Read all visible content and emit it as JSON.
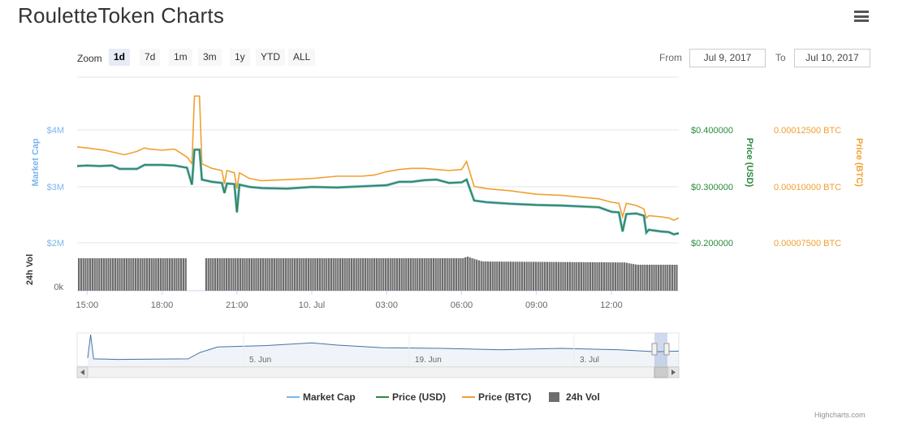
{
  "page": {
    "title": "RouletteToken Charts",
    "menu_icon": "hamburger-menu-icon"
  },
  "toolbar": {
    "zoom_label": "Zoom",
    "zoom_buttons": [
      "1d",
      "7d",
      "1m",
      "3m",
      "1y",
      "YTD",
      "ALL"
    ],
    "active_zoom": "1d",
    "from_label": "From",
    "from_value": "Jul 9, 2017",
    "to_label": "To",
    "to_value": "Jul 10, 2017"
  },
  "credits": "Highcharts.com",
  "colors": {
    "market_cap": "#7cb5ec",
    "price_usd": "#2a8a3c",
    "price_btc": "#f0a030",
    "volume": "#6e6e6e",
    "navigator_line": "#4572a7"
  },
  "chart_data": {
    "type": "line",
    "x_labels": [
      "15:00",
      "18:00",
      "21:00",
      "10. Jul",
      "03:00",
      "06:00",
      "09:00",
      "12:00"
    ],
    "x_range_hours": [
      14.6,
      38.7
    ],
    "axes": {
      "market_cap": {
        "title": "Market Cap",
        "ticks": [
          "$2M",
          "$3M",
          "$4M"
        ],
        "tick_values": [
          2,
          3,
          4
        ],
        "range": [
          2,
          4
        ]
      },
      "price_usd": {
        "title": "Price (USD)",
        "ticks": [
          "$0.200000",
          "$0.300000",
          "$0.400000"
        ],
        "tick_values": [
          0.2,
          0.3,
          0.4
        ],
        "range": [
          0.2,
          0.4
        ]
      },
      "price_btc": {
        "title": "Price (BTC)",
        "ticks": [
          "0.00007500 BTC",
          "0.00010000 BTC",
          "0.00012500 BTC"
        ],
        "tick_values": [
          7.5e-05,
          0.0001,
          0.000125
        ],
        "range": [
          7.5e-05,
          0.000125
        ]
      },
      "volume": {
        "title": "24h Vol",
        "ticks": [
          "0k"
        ]
      }
    },
    "series": [
      {
        "name": "Price (USD)",
        "points": [
          [
            14.6,
            0.336
          ],
          [
            15.0,
            0.337
          ],
          [
            15.5,
            0.336
          ],
          [
            16.0,
            0.337
          ],
          [
            16.3,
            0.331
          ],
          [
            17.0,
            0.331
          ],
          [
            17.3,
            0.338
          ],
          [
            18.0,
            0.338
          ],
          [
            18.5,
            0.337
          ],
          [
            19.0,
            0.333
          ],
          [
            19.2,
            0.303
          ],
          [
            19.3,
            0.365
          ],
          [
            19.5,
            0.365
          ],
          [
            19.6,
            0.312
          ],
          [
            20.0,
            0.308
          ],
          [
            20.4,
            0.306
          ],
          [
            20.5,
            0.288
          ],
          [
            20.6,
            0.305
          ],
          [
            20.9,
            0.304
          ],
          [
            21.0,
            0.254
          ],
          [
            21.1,
            0.303
          ],
          [
            21.5,
            0.299
          ],
          [
            22.0,
            0.297
          ],
          [
            23.0,
            0.296
          ],
          [
            24.0,
            0.299
          ],
          [
            25.0,
            0.298
          ],
          [
            26.0,
            0.3
          ],
          [
            27.0,
            0.302
          ],
          [
            27.5,
            0.308
          ],
          [
            28.0,
            0.308
          ],
          [
            28.5,
            0.311
          ],
          [
            29.0,
            0.312
          ],
          [
            29.5,
            0.306
          ],
          [
            30.0,
            0.307
          ],
          [
            30.2,
            0.312
          ],
          [
            30.5,
            0.275
          ],
          [
            31.0,
            0.272
          ],
          [
            32.0,
            0.269
          ],
          [
            33.0,
            0.267
          ],
          [
            34.0,
            0.266
          ],
          [
            35.0,
            0.264
          ],
          [
            35.5,
            0.263
          ],
          [
            36.0,
            0.255
          ],
          [
            36.3,
            0.254
          ],
          [
            36.45,
            0.22
          ],
          [
            36.6,
            0.251
          ],
          [
            37.0,
            0.252
          ],
          [
            37.3,
            0.248
          ],
          [
            37.4,
            0.218
          ],
          [
            37.5,
            0.223
          ],
          [
            38.0,
            0.22
          ],
          [
            38.3,
            0.219
          ],
          [
            38.5,
            0.215
          ],
          [
            38.7,
            0.217
          ]
        ]
      },
      {
        "name": "Price (BTC)",
        "points": [
          [
            14.6,
            0.0001175
          ],
          [
            15.0,
            0.000117
          ],
          [
            15.7,
            0.000116
          ],
          [
            16.5,
            0.000114
          ],
          [
            17.0,
            0.0001155
          ],
          [
            17.3,
            0.000117
          ],
          [
            17.5,
            0.0001165
          ],
          [
            18.0,
            0.000116
          ],
          [
            18.5,
            0.0001165
          ],
          [
            19.0,
            0.000113
          ],
          [
            19.2,
            0.00011
          ],
          [
            19.3,
            0.00014
          ],
          [
            19.5,
            0.00014
          ],
          [
            19.6,
            0.00011
          ],
          [
            20.0,
            0.000108
          ],
          [
            20.4,
            0.000107
          ],
          [
            20.5,
            0.000101
          ],
          [
            20.6,
            0.000107
          ],
          [
            20.9,
            0.000106
          ],
          [
            21.0,
            9.9e-05
          ],
          [
            21.1,
            0.000106
          ],
          [
            21.5,
            0.0001035
          ],
          [
            22.0,
            0.0001025
          ],
          [
            23.0,
            0.000103
          ],
          [
            24.0,
            0.0001035
          ],
          [
            25.0,
            0.0001045
          ],
          [
            26.0,
            0.0001045
          ],
          [
            26.5,
            0.000105
          ],
          [
            27.0,
            0.0001065
          ],
          [
            27.5,
            0.0001075
          ],
          [
            28.0,
            0.000108
          ],
          [
            28.5,
            0.000108
          ],
          [
            29.0,
            0.0001075
          ],
          [
            29.5,
            0.000107
          ],
          [
            30.0,
            0.0001075
          ],
          [
            30.2,
            0.000111
          ],
          [
            30.5,
            0.0001
          ],
          [
            31.0,
            9.9e-05
          ],
          [
            32.0,
            9.8e-05
          ],
          [
            33.0,
            9.65e-05
          ],
          [
            34.0,
            9.6e-05
          ],
          [
            35.0,
            9.5e-05
          ],
          [
            35.5,
            9.45e-05
          ],
          [
            36.0,
            9.3e-05
          ],
          [
            36.3,
            9.25e-05
          ],
          [
            36.45,
            8.65e-05
          ],
          [
            36.6,
            9.25e-05
          ],
          [
            37.0,
            9.15e-05
          ],
          [
            37.3,
            9e-05
          ],
          [
            37.4,
            8.6e-05
          ],
          [
            37.5,
            8.7e-05
          ],
          [
            38.0,
            8.65e-05
          ],
          [
            38.3,
            8.6e-05
          ],
          [
            38.5,
            8.5e-05
          ],
          [
            38.7,
            8.6e-05
          ]
        ]
      },
      {
        "name": "Market Cap",
        "points": [
          [
            14.6,
            3.36
          ],
          [
            15.0,
            3.37
          ],
          [
            15.5,
            3.36
          ],
          [
            16.0,
            3.37
          ],
          [
            16.3,
            3.31
          ],
          [
            17.0,
            3.31
          ],
          [
            17.3,
            3.38
          ],
          [
            18.0,
            3.38
          ],
          [
            18.5,
            3.37
          ],
          [
            19.0,
            3.33
          ],
          [
            19.2,
            3.03
          ],
          [
            19.3,
            3.65
          ],
          [
            19.5,
            3.65
          ],
          [
            19.6,
            3.12
          ],
          [
            20.0,
            3.08
          ],
          [
            20.4,
            3.06
          ],
          [
            20.5,
            2.88
          ],
          [
            20.6,
            3.05
          ],
          [
            20.9,
            3.04
          ],
          [
            21.0,
            2.54
          ],
          [
            21.1,
            3.03
          ],
          [
            21.5,
            2.99
          ],
          [
            22.0,
            2.97
          ],
          [
            23.0,
            2.96
          ],
          [
            24.0,
            2.99
          ],
          [
            25.0,
            2.98
          ],
          [
            26.0,
            3.0
          ],
          [
            27.0,
            3.02
          ],
          [
            27.5,
            3.08
          ],
          [
            28.0,
            3.08
          ],
          [
            28.5,
            3.11
          ],
          [
            29.0,
            3.12
          ],
          [
            29.5,
            3.06
          ],
          [
            30.0,
            3.07
          ],
          [
            30.2,
            3.12
          ],
          [
            30.5,
            2.75
          ],
          [
            31.0,
            2.72
          ],
          [
            32.0,
            2.69
          ],
          [
            33.0,
            2.67
          ],
          [
            34.0,
            2.66
          ],
          [
            35.0,
            2.64
          ],
          [
            35.5,
            2.63
          ],
          [
            36.0,
            2.55
          ],
          [
            36.3,
            2.54
          ],
          [
            36.45,
            2.2
          ],
          [
            36.6,
            2.51
          ],
          [
            37.0,
            2.52
          ],
          [
            37.3,
            2.48
          ],
          [
            37.4,
            2.18
          ],
          [
            37.5,
            2.23
          ],
          [
            38.0,
            2.2
          ],
          [
            38.3,
            2.19
          ],
          [
            38.5,
            2.15
          ],
          [
            38.7,
            2.17
          ]
        ]
      },
      {
        "name": "24h Vol",
        "gap_hours": [
          [
            18.95,
            19.7
          ]
        ],
        "relative_levels": [
          [
            14.6,
            1.0
          ],
          [
            30.0,
            1.0
          ],
          [
            30.2,
            1.05
          ],
          [
            30.8,
            0.9
          ],
          [
            36.5,
            0.87
          ],
          [
            37.0,
            0.8
          ],
          [
            38.7,
            0.8
          ]
        ]
      }
    ],
    "navigator": {
      "x_labels": [
        "5. Jun",
        "19. Jun",
        "3. Jul"
      ],
      "profile": [
        [
          0,
          0.15
        ],
        [
          0.005,
          1.0
        ],
        [
          0.01,
          0.12
        ],
        [
          0.05,
          0.1
        ],
        [
          0.17,
          0.12
        ],
        [
          0.19,
          0.35
        ],
        [
          0.22,
          0.55
        ],
        [
          0.3,
          0.6
        ],
        [
          0.38,
          0.7
        ],
        [
          0.42,
          0.62
        ],
        [
          0.5,
          0.52
        ],
        [
          0.6,
          0.5
        ],
        [
          0.7,
          0.45
        ],
        [
          0.8,
          0.5
        ],
        [
          0.9,
          0.45
        ],
        [
          0.96,
          0.38
        ],
        [
          1.0,
          0.4
        ]
      ]
    },
    "legend": {
      "position": "bottom-center",
      "items": [
        "Market Cap",
        "Price (USD)",
        "Price (BTC)",
        "24h Vol"
      ]
    },
    "grid": true
  }
}
